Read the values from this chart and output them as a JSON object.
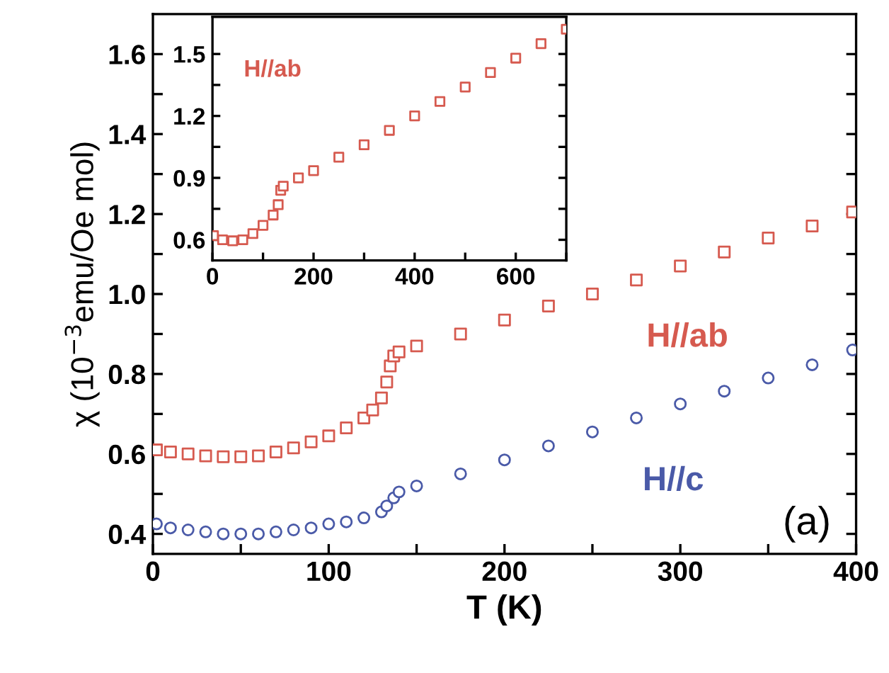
{
  "chart_data": [
    {
      "type": "scatter",
      "xlabel": "T (K)",
      "ylabel": "χ (10$^{−3}$emu/Oe mol)",
      "annotations": [
        "(a)"
      ],
      "xlim": [
        0,
        400
      ],
      "xticks": [
        0,
        {
          "value": 50,
          "label": null
        },
        100,
        {
          "value": 150,
          "label": null
        },
        200,
        {
          "value": 250,
          "label": null
        },
        300,
        {
          "value": 350,
          "label": null
        },
        400
      ],
      "ylim": [
        0.35,
        1.7
      ],
      "yticks": [
        0.4,
        {
          "value": 0.5,
          "label": null
        },
        0.6,
        {
          "value": 0.7,
          "label": null
        },
        0.8,
        {
          "value": 0.9,
          "label": null
        },
        {
          "value": 1.0,
          "label": "1.0"
        },
        {
          "value": 1.1,
          "label": null
        },
        1.2,
        {
          "value": 1.3,
          "label": null
        },
        1.4,
        {
          "value": 1.5,
          "label": null
        },
        1.6
      ],
      "grid": false,
      "legend": false,
      "series": [
        {
          "name": "H//ab",
          "color": "#d65a4f",
          "marker": "square",
          "x": [
            2,
            10,
            20,
            30,
            40,
            50,
            60,
            70,
            80,
            90,
            100,
            110,
            120,
            125,
            130,
            133,
            135,
            137,
            140,
            150,
            175,
            200,
            225,
            250,
            275,
            300,
            325,
            350,
            375,
            398
          ],
          "values": [
            0.61,
            0.605,
            0.6,
            0.595,
            0.593,
            0.593,
            0.595,
            0.605,
            0.615,
            0.63,
            0.645,
            0.665,
            0.69,
            0.71,
            0.74,
            0.78,
            0.82,
            0.845,
            0.855,
            0.87,
            0.9,
            0.935,
            0.97,
            1.0,
            1.035,
            1.07,
            1.105,
            1.14,
            1.17,
            1.205
          ]
        },
        {
          "name": "H//c",
          "color": "#4a5aa8",
          "marker": "circle",
          "x": [
            2,
            10,
            20,
            30,
            40,
            50,
            60,
            70,
            80,
            90,
            100,
            110,
            120,
            130,
            133,
            137,
            140,
            150,
            175,
            200,
            225,
            250,
            275,
            300,
            325,
            350,
            375,
            398
          ],
          "values": [
            0.425,
            0.415,
            0.41,
            0.405,
            0.4,
            0.4,
            0.4,
            0.405,
            0.41,
            0.415,
            0.425,
            0.43,
            0.44,
            0.455,
            0.47,
            0.49,
            0.505,
            0.52,
            0.55,
            0.585,
            0.62,
            0.655,
            0.69,
            0.725,
            0.757,
            0.79,
            0.823,
            0.86
          ]
        }
      ]
    },
    {
      "type": "scatter",
      "xlim": [
        0,
        700
      ],
      "xticks": [
        0,
        {
          "value": 100,
          "label": null
        },
        200,
        {
          "value": 300,
          "label": null
        },
        400,
        {
          "value": 500,
          "label": null
        },
        600,
        {
          "value": 700,
          "label": null
        }
      ],
      "ylim": [
        0.5,
        1.68
      ],
      "yticks": [
        0.6,
        {
          "value": 0.75,
          "label": null
        },
        0.9,
        {
          "value": 1.05,
          "label": null
        },
        1.2,
        {
          "value": 1.35,
          "label": null
        },
        1.5
      ],
      "grid": false,
      "legend": false,
      "series": [
        {
          "name": "H//ab",
          "color": "#d65a4f",
          "marker": "square",
          "x": [
            2,
            20,
            40,
            60,
            80,
            100,
            120,
            130,
            135,
            140,
            170,
            200,
            250,
            300,
            350,
            400,
            450,
            500,
            550,
            600,
            650,
            700
          ],
          "values": [
            0.62,
            0.6,
            0.595,
            0.6,
            0.63,
            0.67,
            0.72,
            0.77,
            0.84,
            0.86,
            0.9,
            0.935,
            1.0,
            1.06,
            1.13,
            1.2,
            1.27,
            1.34,
            1.41,
            1.48,
            1.55,
            1.62
          ]
        }
      ]
    }
  ]
}
